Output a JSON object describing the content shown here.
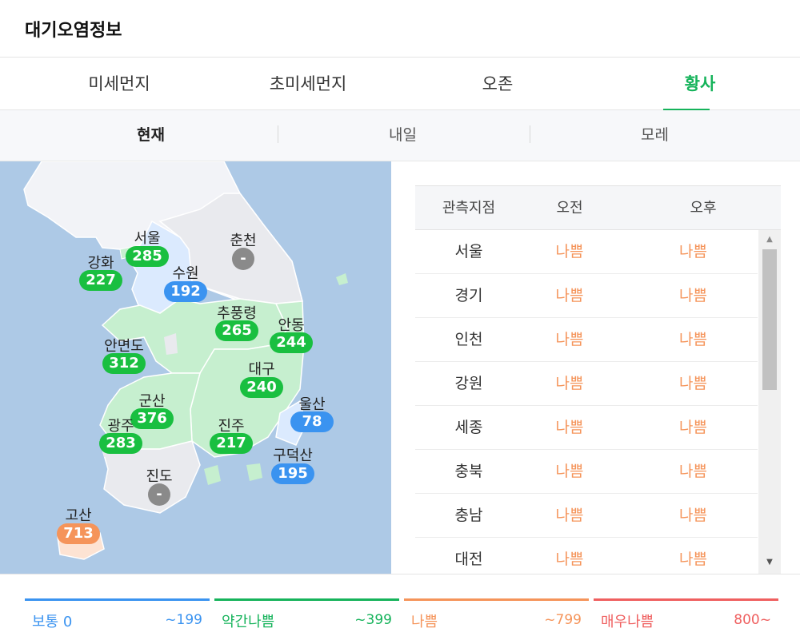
{
  "header": {
    "title": "대기오염정보"
  },
  "tabs": [
    {
      "label": "미세먼지",
      "active": false
    },
    {
      "label": "초미세먼지",
      "active": false
    },
    {
      "label": "오존",
      "active": false
    },
    {
      "label": "황사",
      "active": true
    }
  ],
  "subtabs": [
    {
      "label": "현재",
      "active": true
    },
    {
      "label": "내일",
      "active": false
    },
    {
      "label": "모레",
      "active": false
    }
  ],
  "map": {
    "stations": [
      {
        "name": "서울",
        "value": "285",
        "level": "green"
      },
      {
        "name": "춘천",
        "value": "-",
        "level": "gray"
      },
      {
        "name": "강화",
        "value": "227",
        "level": "green"
      },
      {
        "name": "수원",
        "value": "192",
        "level": "blue"
      },
      {
        "name": "추풍령",
        "value": "265",
        "level": "green"
      },
      {
        "name": "안동",
        "value": "244",
        "level": "green"
      },
      {
        "name": "안면도",
        "value": "312",
        "level": "green"
      },
      {
        "name": "대구",
        "value": "240",
        "level": "green"
      },
      {
        "name": "군산",
        "value": "376",
        "level": "green"
      },
      {
        "name": "울산",
        "value": "78",
        "level": "blue"
      },
      {
        "name": "광주",
        "value": "283",
        "level": "green"
      },
      {
        "name": "진주",
        "value": "217",
        "level": "green"
      },
      {
        "name": "구덕산",
        "value": "195",
        "level": "blue"
      },
      {
        "name": "진도",
        "value": "-",
        "level": "gray"
      },
      {
        "name": "고산",
        "value": "713",
        "level": "orange"
      }
    ]
  },
  "table": {
    "headers": {
      "site": "관측지점",
      "am": "오전",
      "pm": "오후"
    },
    "rows": [
      {
        "site": "서울",
        "am": "나쁨",
        "pm": "나쁨"
      },
      {
        "site": "경기",
        "am": "나쁨",
        "pm": "나쁨"
      },
      {
        "site": "인천",
        "am": "나쁨",
        "pm": "나쁨"
      },
      {
        "site": "강원",
        "am": "나쁨",
        "pm": "나쁨"
      },
      {
        "site": "세종",
        "am": "나쁨",
        "pm": "나쁨"
      },
      {
        "site": "충북",
        "am": "나쁨",
        "pm": "나쁨"
      },
      {
        "site": "충남",
        "am": "나쁨",
        "pm": "나쁨"
      },
      {
        "site": "대전",
        "am": "나쁨",
        "pm": "나쁨"
      }
    ]
  },
  "legend": [
    {
      "label": "보통 0",
      "range": "~199",
      "color": "#3a93f0"
    },
    {
      "label": "약간나쁨",
      "range": "~399",
      "color": "#16b35b"
    },
    {
      "label": "나쁨",
      "range": "~799",
      "color": "#f5945a"
    },
    {
      "label": "매우나쁨",
      "range": "800~",
      "color": "#ef5f5f"
    }
  ]
}
